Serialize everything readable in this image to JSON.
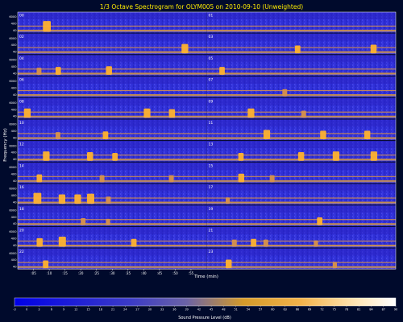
{
  "chart_data": {
    "type": "heatmap",
    "title": "1/3 Octave Spectrogram for OLYM005 on 2010-09-10 (Unweighted)",
    "xlabel": "Time (min)",
    "ylabel": "Frequency (Hz)",
    "colorbar_label": "Sound Pressure Level (dB)",
    "x_ticks": [
      ":05",
      ":10",
      ":15",
      ":20",
      ":25",
      ":30",
      ":35",
      ":40",
      ":45",
      ":50",
      ":55"
    ],
    "x_range_minutes": [
      0,
      60
    ],
    "y_ticks": [
      "6000",
      "400",
      "40"
    ],
    "colorbar_ticks": [
      -3,
      0,
      3,
      6,
      9,
      12,
      15,
      18,
      21,
      24,
      27,
      30,
      33,
      36,
      39,
      42,
      45,
      48,
      51,
      54,
      57,
      60,
      63,
      66,
      69,
      72,
      75,
      78,
      81,
      84,
      87,
      90
    ],
    "colorbar_range_db": [
      -3,
      90
    ],
    "rows": [
      {
        "left": "00",
        "right": "01"
      },
      {
        "left": "02",
        "right": "03"
      },
      {
        "left": "04",
        "right": "05"
      },
      {
        "left": "06",
        "right": "07"
      },
      {
        "left": "08",
        "right": "09"
      },
      {
        "left": "10",
        "right": "11"
      },
      {
        "left": "12",
        "right": "13"
      },
      {
        "left": "14",
        "right": "15"
      },
      {
        "left": "16",
        "right": "17"
      },
      {
        "left": "18",
        "right": "19"
      },
      {
        "left": "20",
        "right": "21"
      },
      {
        "left": "22",
        "right": "23"
      }
    ],
    "events": [
      {
        "row": 0,
        "minute": 8,
        "level_db": 63
      },
      {
        "row": 1,
        "minute": 52,
        "level_db": 57
      },
      {
        "row": 1,
        "minute": 88,
        "level_db": 51
      },
      {
        "row": 1,
        "minute": 112,
        "level_db": 54
      },
      {
        "row": 2,
        "minute": 6,
        "level_db": 48
      },
      {
        "row": 2,
        "minute": 12,
        "level_db": 51
      },
      {
        "row": 2,
        "minute": 28,
        "level_db": 54
      },
      {
        "row": 2,
        "minute": 64,
        "level_db": 51
      },
      {
        "row": 3,
        "minute": 84,
        "level_db": 48
      },
      {
        "row": 4,
        "minute": 2,
        "level_db": 57
      },
      {
        "row": 4,
        "minute": 40,
        "level_db": 57
      },
      {
        "row": 4,
        "minute": 48,
        "level_db": 54
      },
      {
        "row": 4,
        "minute": 73,
        "level_db": 57
      },
      {
        "row": 4,
        "minute": 90,
        "level_db": 48
      },
      {
        "row": 5,
        "minute": 12,
        "level_db": 48
      },
      {
        "row": 5,
        "minute": 27,
        "level_db": 51
      },
      {
        "row": 5,
        "minute": 78,
        "level_db": 57
      },
      {
        "row": 5,
        "minute": 96,
        "level_db": 54
      },
      {
        "row": 5,
        "minute": 110,
        "level_db": 54
      },
      {
        "row": 6,
        "minute": 8,
        "level_db": 57
      },
      {
        "row": 6,
        "minute": 22,
        "level_db": 54
      },
      {
        "row": 6,
        "minute": 30,
        "level_db": 51
      },
      {
        "row": 6,
        "minute": 70,
        "level_db": 51
      },
      {
        "row": 6,
        "minute": 89,
        "level_db": 54
      },
      {
        "row": 6,
        "minute": 100,
        "level_db": 57
      },
      {
        "row": 6,
        "minute": 112,
        "level_db": 57
      },
      {
        "row": 7,
        "minute": 6,
        "level_db": 51
      },
      {
        "row": 7,
        "minute": 26,
        "level_db": 48
      },
      {
        "row": 7,
        "minute": 48,
        "level_db": 48
      },
      {
        "row": 7,
        "minute": 70,
        "level_db": 54
      },
      {
        "row": 7,
        "minute": 80,
        "level_db": 48
      },
      {
        "row": 8,
        "minute": 5,
        "level_db": 63
      },
      {
        "row": 8,
        "minute": 13,
        "level_db": 57
      },
      {
        "row": 8,
        "minute": 18,
        "level_db": 57
      },
      {
        "row": 8,
        "minute": 22,
        "level_db": 60
      },
      {
        "row": 8,
        "minute": 28,
        "level_db": 48
      },
      {
        "row": 8,
        "minute": 66,
        "level_db": 45
      },
      {
        "row": 9,
        "minute": 20,
        "level_db": 48
      },
      {
        "row": 9,
        "minute": 28,
        "level_db": 45
      },
      {
        "row": 9,
        "minute": 95,
        "level_db": 51
      },
      {
        "row": 10,
        "minute": 6,
        "level_db": 54
      },
      {
        "row": 10,
        "minute": 13,
        "level_db": 60
      },
      {
        "row": 10,
        "minute": 36,
        "level_db": 51
      },
      {
        "row": 10,
        "minute": 68,
        "level_db": 48
      },
      {
        "row": 10,
        "minute": 74,
        "level_db": 51
      },
      {
        "row": 10,
        "minute": 78,
        "level_db": 48
      },
      {
        "row": 10,
        "minute": 94,
        "level_db": 45
      },
      {
        "row": 11,
        "minute": 8,
        "level_db": 51
      },
      {
        "row": 11,
        "minute": 66,
        "level_db": 54
      },
      {
        "row": 11,
        "minute": 100,
        "level_db": 45
      }
    ],
    "grid": false,
    "colors": {
      "background": "#000a2c",
      "text": "#ffffff",
      "title": "#ffee00",
      "low": "#2a2ad8",
      "band": "#d8924a",
      "high": "#ffb22e"
    }
  }
}
